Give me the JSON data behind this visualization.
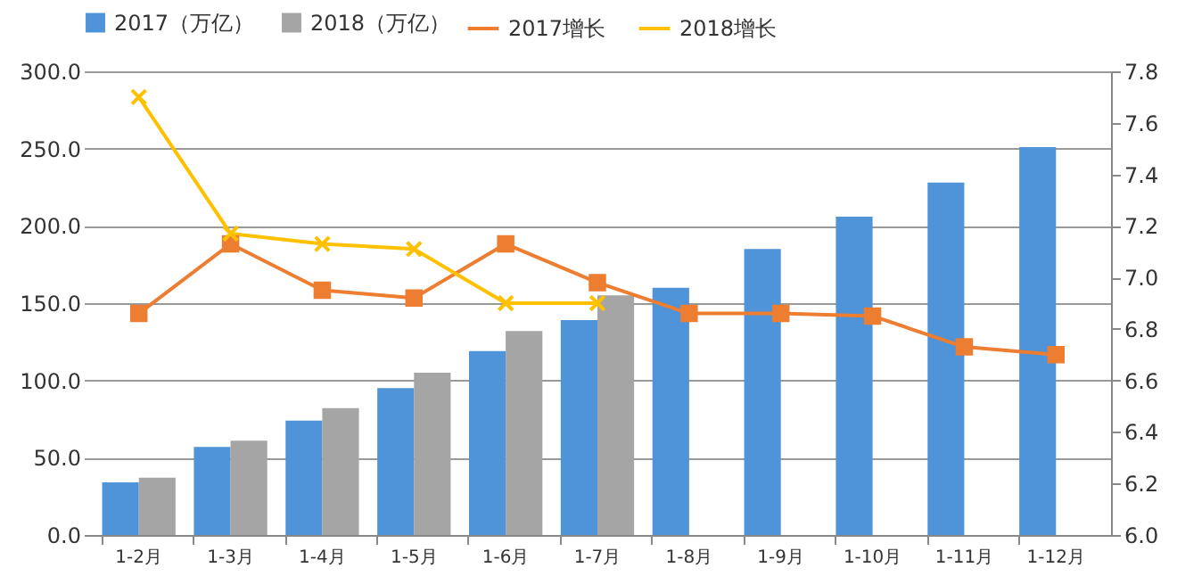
{
  "chart_data": {
    "type": "bar",
    "categories": [
      "1-2月",
      "1-3月",
      "1-4月",
      "1-5月",
      "1-6月",
      "1-7月",
      "1-8月",
      "1-9月",
      "1-10月",
      "1-11月",
      "1-12月"
    ],
    "series": [
      {
        "name": "2017（万亿）",
        "color": "#4f93d8",
        "values": [
          34,
          57,
          74,
          95,
          119,
          139,
          160,
          185,
          206,
          228,
          251
        ]
      },
      {
        "name": "2018（万亿）",
        "color": "#a5a5a5",
        "values": [
          37,
          61,
          82,
          105,
          132,
          155,
          null,
          null,
          null,
          null,
          null
        ]
      },
      {
        "name": "2017增长",
        "type": "line",
        "axis": "y2",
        "marker": "square",
        "color": "#ed7d31",
        "values": [
          6.86,
          7.13,
          6.95,
          6.92,
          7.13,
          6.98,
          6.86,
          6.86,
          6.85,
          6.73,
          6.7
        ]
      },
      {
        "name": "2018增长",
        "type": "line",
        "axis": "y2",
        "marker": "cross",
        "color": "#ffc000",
        "values": [
          7.7,
          7.17,
          7.13,
          7.11,
          6.9,
          6.9,
          null,
          null,
          null,
          null,
          null
        ]
      }
    ],
    "ylim": [
      0,
      300
    ],
    "yticks": [
      {
        "value": 0,
        "label": "0.0"
      },
      {
        "value": 50,
        "label": "50.0"
      },
      {
        "value": 100,
        "label": "100.0"
      },
      {
        "value": 150,
        "label": "150.0"
      },
      {
        "value": 200,
        "label": "200.0"
      },
      {
        "value": 250,
        "label": "250.0"
      },
      {
        "value": 300,
        "label": "300.0"
      }
    ],
    "y2lim": [
      6,
      7.8
    ],
    "y2ticks": [
      {
        "value": 6,
        "label": "6.0"
      },
      6.2,
      6.4,
      6.6,
      6.8,
      {
        "value": 7,
        "label": "7.0"
      },
      7.2,
      7.4,
      7.6,
      7.8
    ],
    "grid": "y",
    "legend": "top"
  }
}
